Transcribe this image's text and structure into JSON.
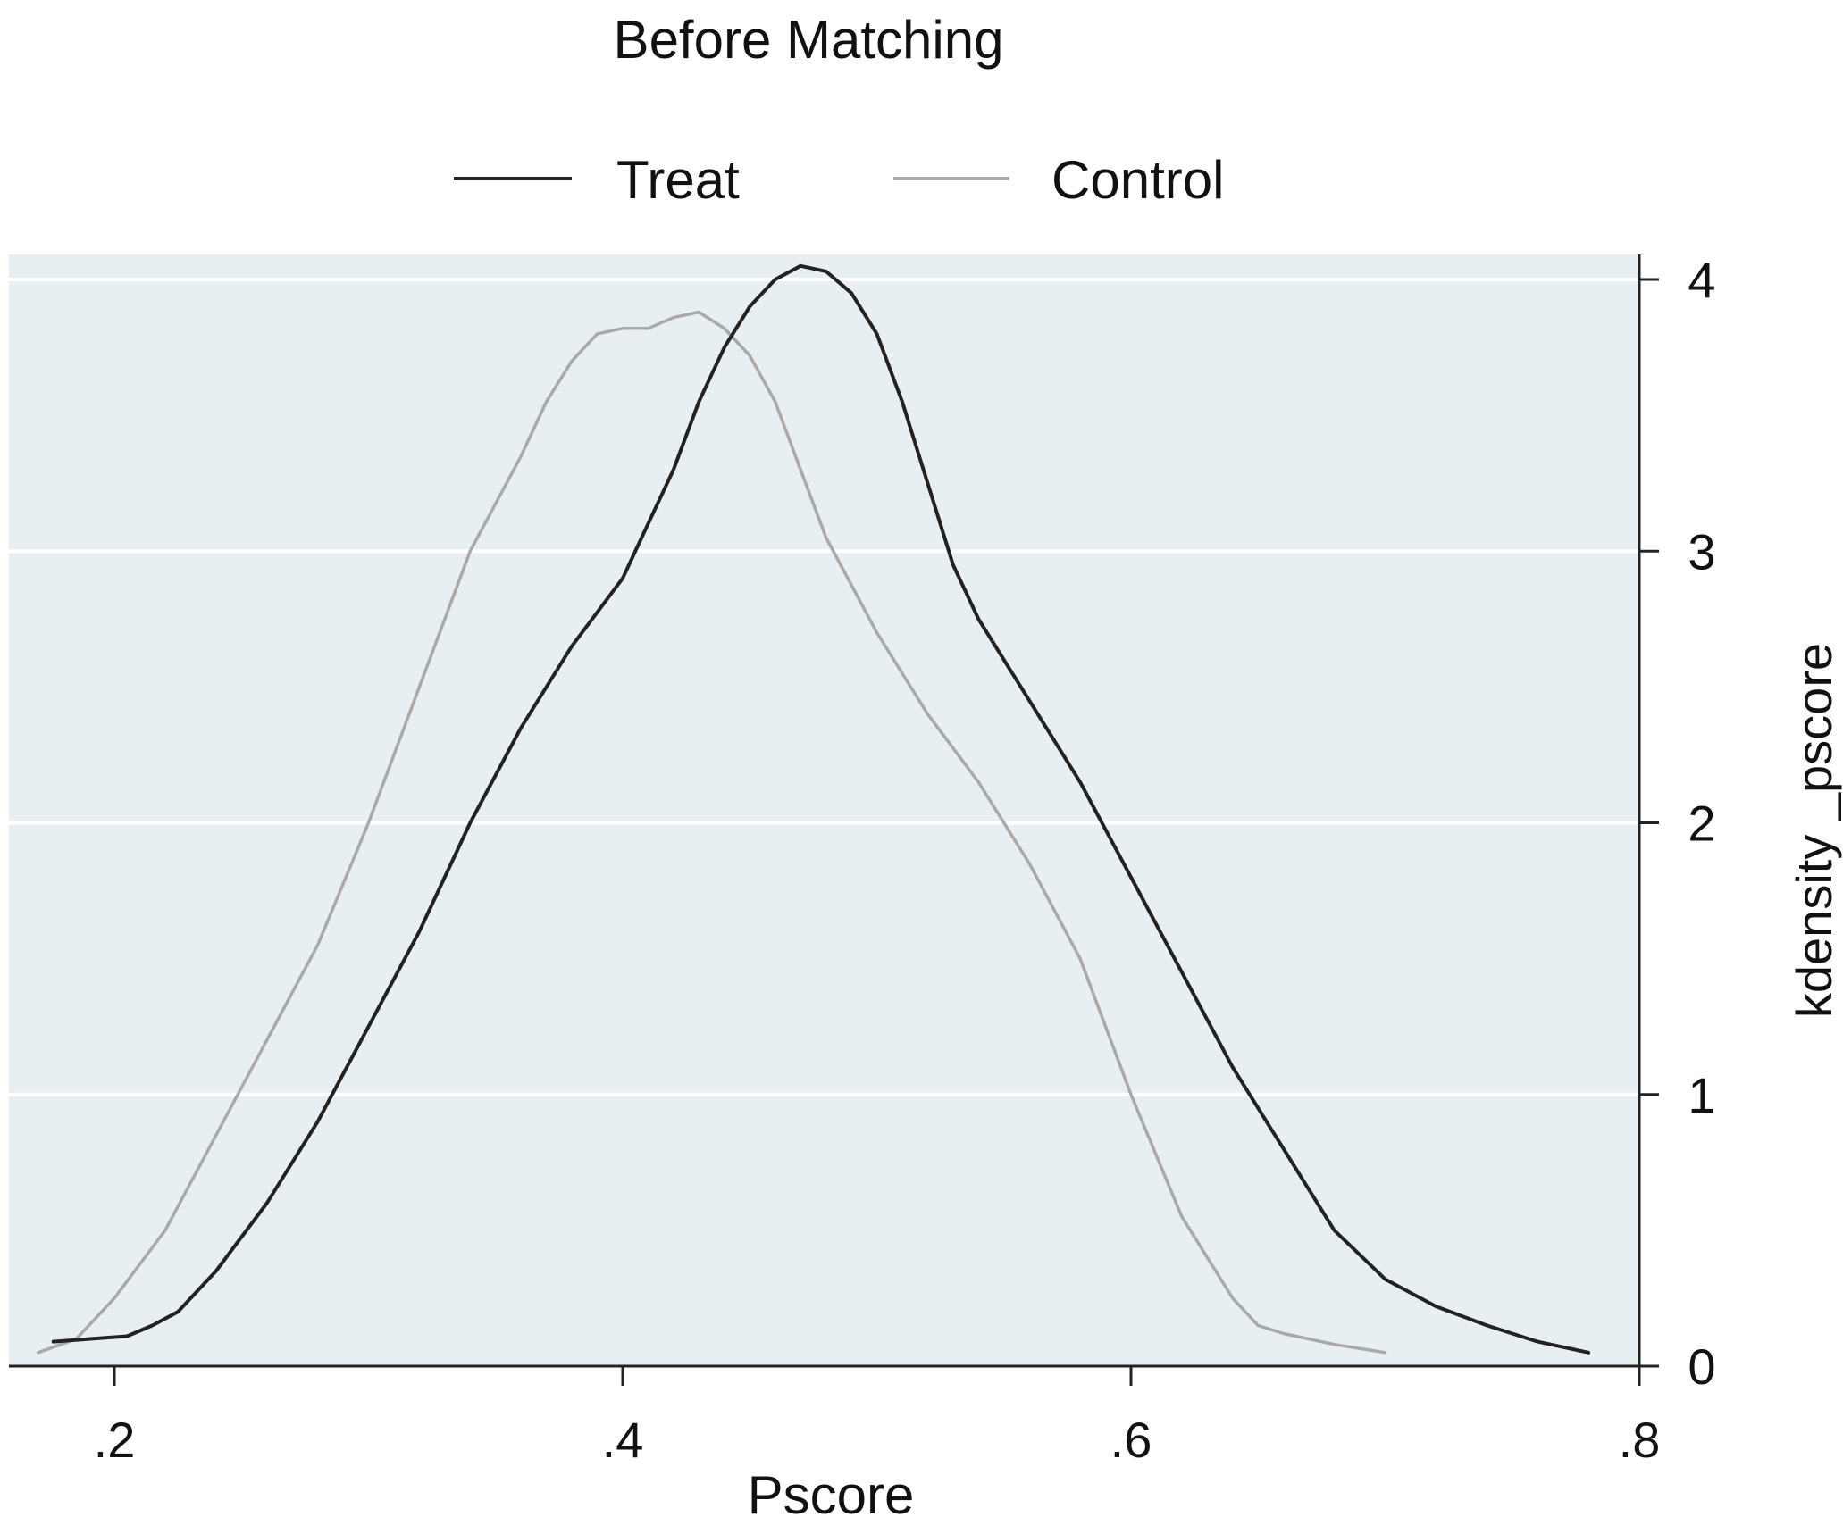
{
  "chart_data": {
    "type": "line",
    "title": "Before Matching",
    "xlabel": "Pscore",
    "ylabel": "kdensity _pscore",
    "xlim": [
      0.18,
      0.8
    ],
    "ylim": [
      0,
      4.1
    ],
    "x_ticks": [
      {
        "value": 0.2,
        "label": ".2"
      },
      {
        "value": 0.4,
        "label": ".4"
      },
      {
        "value": 0.6,
        "label": ".6"
      },
      {
        "value": 0.8,
        "label": ".8"
      }
    ],
    "y_ticks": [
      {
        "value": 0,
        "label": "0"
      },
      {
        "value": 1,
        "label": "1"
      },
      {
        "value": 2,
        "label": "2"
      },
      {
        "value": 3,
        "label": "3"
      },
      {
        "value": 4,
        "label": "4"
      }
    ],
    "y_axis_side": "right",
    "grid": true,
    "legend_position": "top",
    "colors": {
      "plot_background": "#e8eff2",
      "grid": "#ffffff",
      "axis": "#222222",
      "treat": "#222222",
      "control": "#a9a9a9"
    },
    "series": [
      {
        "name": "Treat",
        "x": [
          0.176,
          0.19,
          0.205,
          0.215,
          0.225,
          0.24,
          0.26,
          0.28,
          0.3,
          0.32,
          0.34,
          0.36,
          0.38,
          0.4,
          0.41,
          0.42,
          0.43,
          0.44,
          0.45,
          0.46,
          0.47,
          0.48,
          0.49,
          0.5,
          0.51,
          0.52,
          0.53,
          0.54,
          0.56,
          0.58,
          0.6,
          0.62,
          0.64,
          0.66,
          0.68,
          0.7,
          0.72,
          0.74,
          0.76,
          0.78
        ],
        "y": [
          0.09,
          0.1,
          0.11,
          0.15,
          0.2,
          0.35,
          0.6,
          0.9,
          1.25,
          1.6,
          2.0,
          2.35,
          2.65,
          2.9,
          3.1,
          3.3,
          3.55,
          3.75,
          3.9,
          4.0,
          4.05,
          4.03,
          3.95,
          3.8,
          3.55,
          3.25,
          2.95,
          2.75,
          2.45,
          2.15,
          1.8,
          1.45,
          1.1,
          0.8,
          0.5,
          0.32,
          0.22,
          0.15,
          0.09,
          0.05
        ]
      },
      {
        "name": "Control",
        "x": [
          0.17,
          0.185,
          0.2,
          0.22,
          0.24,
          0.26,
          0.28,
          0.3,
          0.32,
          0.34,
          0.36,
          0.37,
          0.38,
          0.39,
          0.4,
          0.41,
          0.42,
          0.43,
          0.44,
          0.45,
          0.46,
          0.47,
          0.48,
          0.5,
          0.52,
          0.54,
          0.56,
          0.58,
          0.6,
          0.62,
          0.64,
          0.65,
          0.66,
          0.68,
          0.7
        ],
        "y": [
          0.05,
          0.1,
          0.25,
          0.5,
          0.85,
          1.2,
          1.55,
          2.0,
          2.5,
          3.0,
          3.35,
          3.55,
          3.7,
          3.8,
          3.82,
          3.82,
          3.86,
          3.88,
          3.82,
          3.72,
          3.55,
          3.3,
          3.05,
          2.7,
          2.4,
          2.15,
          1.85,
          1.5,
          1.0,
          0.55,
          0.25,
          0.15,
          0.12,
          0.08,
          0.05
        ]
      }
    ]
  }
}
